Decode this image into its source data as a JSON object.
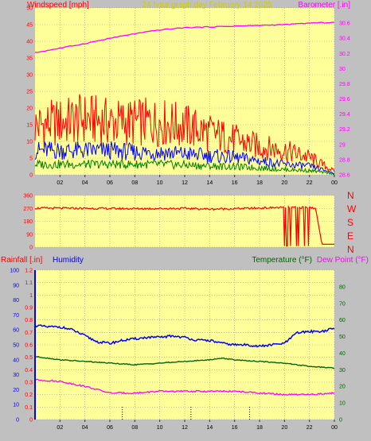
{
  "header": {
    "windspeed_label": "Windspeed [mph]",
    "title": "24 hour graph day   February 14 2025",
    "barometer_label": "Barometer [.in]",
    "rainfall_label": "Rainfall [.in]",
    "humidity_label": "Humidity",
    "temperature_label": "Temperature (°F)",
    "dewpoint_label": "Dew Point (°F)"
  },
  "colors": {
    "background": "#c0c0c0",
    "plot_bg": "#ffff99",
    "grid": "#9a9a9a",
    "gust": "#ff0000",
    "wind_avg": "#0000ff",
    "wind_low": "#008000",
    "barometer": "#ff00ff",
    "direction": "#ff0000",
    "humidity": "#0000ff",
    "temperature": "#006400",
    "dewpoint": "#ff00ff",
    "rain_axis": "#ff0000"
  },
  "chart_data": [
    {
      "id": "wind",
      "type": "line",
      "x_ticks": [
        "02",
        "04",
        "06",
        "08",
        "10",
        "12",
        "14",
        "16",
        "18",
        "20",
        "22",
        "00"
      ],
      "y_left": {
        "label": "Windspeed [mph]",
        "lim": [
          0,
          50
        ],
        "ticks": [
          0,
          5,
          10,
          15,
          20,
          25,
          30,
          35,
          40,
          45,
          50
        ]
      },
      "y_right": {
        "label": "Barometer [.in]",
        "lim": [
          28.6,
          30.8
        ],
        "ticks": [
          "28.6",
          "28.8",
          "29",
          "29.2",
          "29.4",
          "29.6",
          "29.8",
          "30",
          "30.2",
          "30.4",
          "30.6"
        ]
      },
      "x_range_hours": [
        0,
        24
      ],
      "grid": true,
      "series": [
        {
          "role": "barometer",
          "axis": "right",
          "x": [
            0,
            2,
            4,
            6,
            8,
            10,
            12,
            14,
            16,
            18,
            20,
            22,
            24
          ],
          "values": [
            30.21,
            30.27,
            30.33,
            30.4,
            30.46,
            30.51,
            30.54,
            30.55,
            30.56,
            30.57,
            30.58,
            30.6,
            30.61
          ]
        },
        {
          "role": "gust",
          "axis": "left",
          "x": [
            0,
            2,
            4,
            6,
            8,
            10,
            12,
            14,
            16,
            18,
            20,
            22,
            23.5,
            24
          ],
          "values": [
            14,
            15,
            16,
            15,
            15,
            15,
            14,
            12,
            10,
            8,
            7,
            5,
            2,
            1
          ]
        },
        {
          "role": "average",
          "axis": "left",
          "x": [
            0,
            2,
            4,
            6,
            8,
            10,
            12,
            14,
            16,
            18,
            20,
            22,
            23.5,
            24
          ],
          "values": [
            7,
            7,
            7,
            7,
            6.5,
            6.5,
            6,
            5.5,
            5,
            4,
            3,
            2.5,
            1,
            0.5
          ]
        },
        {
          "role": "low",
          "axis": "left",
          "x": [
            0,
            2,
            4,
            6,
            8,
            10,
            12,
            14,
            16,
            18,
            20,
            22,
            23.5,
            24
          ],
          "values": [
            3,
            3,
            3,
            3,
            3,
            3,
            2.8,
            2.5,
            2.3,
            2,
            1.5,
            1.2,
            0.5,
            0.2
          ]
        }
      ]
    },
    {
      "id": "direction",
      "type": "line",
      "y_left": {
        "lim": [
          0,
          360
        ],
        "ticks": [
          0,
          90,
          180,
          270,
          360
        ]
      },
      "y_right": {
        "ticks": [
          "N",
          "E",
          "S",
          "W",
          "N"
        ]
      },
      "x_range_hours": [
        0,
        24
      ],
      "grid": true,
      "series": [
        {
          "role": "direction",
          "x": [
            0,
            4,
            8,
            12,
            14,
            16,
            18,
            19.5,
            20,
            21,
            22,
            22.5,
            23,
            24
          ],
          "values": [
            272,
            270,
            268,
            270,
            265,
            268,
            272,
            276,
            275,
            276,
            277,
            270,
            20,
            20
          ]
        }
      ]
    },
    {
      "id": "rain_humidity_temp",
      "type": "line",
      "x_ticks": [
        "02",
        "04",
        "06",
        "08",
        "10",
        "12",
        "14",
        "16",
        "18",
        "20",
        "22",
        "00"
      ],
      "y_left_humidity": {
        "label": "Humidity",
        "lim": [
          0,
          100
        ],
        "ticks": [
          0,
          10,
          20,
          30,
          40,
          50,
          60,
          70,
          80,
          90,
          100
        ]
      },
      "y_left_rain": {
        "label": "Rainfall [.in]",
        "lim": [
          0,
          1.2
        ],
        "ticks": [
          "0",
          "0.1",
          "0.2",
          "0.3",
          "0.4",
          "0.5",
          "0.6",
          "0.7",
          "0.8",
          "0.9",
          "1",
          "1.1",
          "1.2"
        ]
      },
      "y_right": {
        "label": "Temperature (°F) / Dew Point (°F)",
        "lim": [
          0,
          90
        ],
        "ticks": [
          0,
          10,
          20,
          30,
          40,
          50,
          60,
          70,
          80
        ]
      },
      "x_range_hours": [
        0,
        24
      ],
      "grid": true,
      "series": [
        {
          "role": "humidity",
          "axis": "left_humidity",
          "x": [
            0,
            1,
            2,
            3,
            4,
            5,
            6,
            7,
            8,
            9,
            10,
            11,
            12,
            13,
            14,
            15,
            16,
            17,
            18,
            19,
            20,
            21,
            22,
            23,
            24
          ],
          "values": [
            63,
            62,
            62,
            60,
            56,
            52,
            51,
            53,
            54,
            55,
            55,
            56,
            55,
            53,
            53,
            51,
            50,
            50,
            49,
            50,
            51,
            58,
            59,
            59,
            61
          ]
        },
        {
          "role": "temperature",
          "axis": "right",
          "x": [
            0,
            2,
            4,
            6,
            8,
            10,
            12,
            14,
            15,
            16,
            18,
            20,
            22,
            24
          ],
          "values": [
            38,
            36,
            35,
            34,
            33,
            34,
            35,
            36,
            37,
            36,
            35,
            34,
            32,
            31
          ]
        },
        {
          "role": "dewpoint",
          "axis": "right",
          "x": [
            0,
            2,
            4,
            6,
            8,
            10,
            12,
            14,
            16,
            18,
            20,
            22,
            24
          ],
          "values": [
            24,
            23,
            20,
            16,
            16,
            17,
            17,
            17,
            17,
            16,
            15,
            15,
            16
          ]
        }
      ]
    }
  ]
}
